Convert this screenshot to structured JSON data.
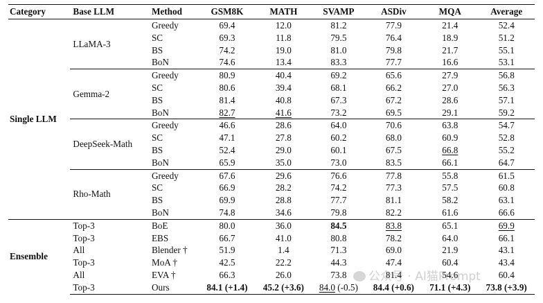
{
  "headers": [
    "Category",
    "Base LLM",
    "Method",
    "GSM8K",
    "MATH",
    "SVAMP",
    "ASDiv",
    "MQA",
    "Average"
  ],
  "categories": {
    "single": "Single LLM",
    "ensemble": "Ensemble"
  },
  "single_groups": [
    {
      "base": "LLaMA-3",
      "rows": [
        {
          "method": "Greedy",
          "values": [
            "69.4",
            "12.0",
            "81.2",
            "77.9",
            "21.4",
            "52.4"
          ]
        },
        {
          "method": "SC",
          "values": [
            "69.3",
            "11.8",
            "79.5",
            "76.4",
            "18.9",
            "51.2"
          ]
        },
        {
          "method": "BS",
          "values": [
            "74.2",
            "19.0",
            "81.0",
            "79.8",
            "21.7",
            "55.1"
          ]
        },
        {
          "method": "BoN",
          "values": [
            "74.6",
            "13.4",
            "83.3",
            "77.7",
            "16.6",
            "53.1"
          ]
        }
      ]
    },
    {
      "base": "Gemma-2",
      "rows": [
        {
          "method": "Greedy",
          "values": [
            "80.9",
            "40.4",
            "69.2",
            "65.6",
            "27.9",
            "56.8"
          ]
        },
        {
          "method": "SC",
          "values": [
            "80.6",
            "39.4",
            "68.1",
            "66.2",
            "27.0",
            "56.3"
          ]
        },
        {
          "method": "BS",
          "values": [
            "81.4",
            "40.8",
            "67.3",
            "67.2",
            "28.6",
            "57.1"
          ]
        },
        {
          "method": "BoN",
          "values": [
            "82.7",
            "41.6",
            "73.2",
            "69.5",
            "29.1",
            "59.2"
          ]
        }
      ]
    },
    {
      "base": "DeepSeek-Math",
      "rows": [
        {
          "method": "Greedy",
          "values": [
            "46.6",
            "28.6",
            "64.0",
            "70.6",
            "63.8",
            "54.7"
          ]
        },
        {
          "method": "SC",
          "values": [
            "47.1",
            "27.8",
            "60.2",
            "68.0",
            "60.9",
            "52.8"
          ]
        },
        {
          "method": "BS",
          "values": [
            "52.4",
            "29.0",
            "60.1",
            "67.5",
            "66.8",
            "55.2"
          ]
        },
        {
          "method": "BoN",
          "values": [
            "65.9",
            "35.0",
            "73.0",
            "83.5",
            "66.1",
            "64.7"
          ]
        }
      ]
    },
    {
      "base": "Rho-Math",
      "rows": [
        {
          "method": "Greedy",
          "values": [
            "67.6",
            "29.6",
            "76.6",
            "77.8",
            "55.8",
            "61.5"
          ]
        },
        {
          "method": "SC",
          "values": [
            "66.9",
            "28.2",
            "74.2",
            "77.3",
            "57.5",
            "60.8"
          ]
        },
        {
          "method": "BS",
          "values": [
            "69.9",
            "28.8",
            "77.7",
            "81.1",
            "58.2",
            "63.1"
          ]
        },
        {
          "method": "BoN",
          "values": [
            "74.8",
            "34.6",
            "79.8",
            "82.2",
            "61.6",
            "66.6"
          ]
        }
      ]
    }
  ],
  "ensemble_rows": [
    {
      "base": "Top-3",
      "method": "BoE",
      "values": [
        "80.0",
        "36.0",
        "84.5",
        "83.8",
        "65.1",
        "69.9"
      ]
    },
    {
      "base": "Top-3",
      "method": "EBS",
      "values": [
        "66.7",
        "41.0",
        "80.8",
        "78.2",
        "64.0",
        "66.1"
      ]
    },
    {
      "base": "All",
      "method": "Blender †",
      "values": [
        "51.9",
        "1.4",
        "71.3",
        "69.0",
        "21.9",
        "43.1"
      ]
    },
    {
      "base": "Top-3",
      "method": "MoA †",
      "values": [
        "42.5",
        "22.2",
        "44.3",
        "47.4",
        "60.4",
        "43.4"
      ]
    },
    {
      "base": "All",
      "method": "EVA †",
      "values": [
        "66.3",
        "26.0",
        "73.8",
        "81.4",
        "54.6",
        "60.4"
      ]
    }
  ],
  "ours_row": {
    "base": "Top-3",
    "method": "Ours",
    "cells": [
      {
        "value": "84.1",
        "delta": "(+1.4)"
      },
      {
        "value": "45.2",
        "delta": "(+3.6)"
      },
      {
        "value": "84.0",
        "delta": "(-0.5)"
      },
      {
        "value": "84.4",
        "delta": "(+0.6)"
      },
      {
        "value": "71.1",
        "delta": "(+4.3)"
      },
      {
        "value": "73.8",
        "delta": "(+3.9)"
      }
    ]
  },
  "watermark": "公众号 · AI猫Prompt"
}
